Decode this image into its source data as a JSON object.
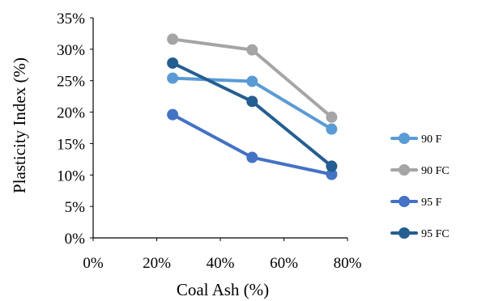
{
  "chart_data": {
    "type": "line",
    "title": "",
    "xlabel": "Coal Ash (%)",
    "ylabel": "Plasticity Index (%)",
    "xlim": [
      0,
      80
    ],
    "ylim": [
      0,
      35
    ],
    "x_ticks": [
      0,
      20,
      40,
      60,
      80
    ],
    "y_ticks": [
      0,
      5,
      10,
      15,
      20,
      25,
      30,
      35
    ],
    "x_tick_labels": [
      "0%",
      "20%",
      "40%",
      "60%",
      "80%"
    ],
    "y_tick_labels": [
      "0%",
      "5%",
      "10%",
      "15%",
      "20%",
      "25%",
      "30%",
      "35%"
    ],
    "x": [
      25,
      50,
      75
    ],
    "grid": false,
    "legend_position": "right",
    "series": [
      {
        "name": "90 F",
        "color": "#5B9BD5",
        "values": [
          25.4,
          24.9,
          17.3
        ]
      },
      {
        "name": "90 FC",
        "color": "#A5A5A5",
        "values": [
          31.6,
          29.9,
          19.2
        ]
      },
      {
        "name": "95 F",
        "color": "#4472C4",
        "values": [
          19.6,
          12.8,
          10.1
        ]
      },
      {
        "name": "95 FC",
        "color": "#255E91",
        "values": [
          27.8,
          21.7,
          11.4
        ]
      }
    ]
  }
}
